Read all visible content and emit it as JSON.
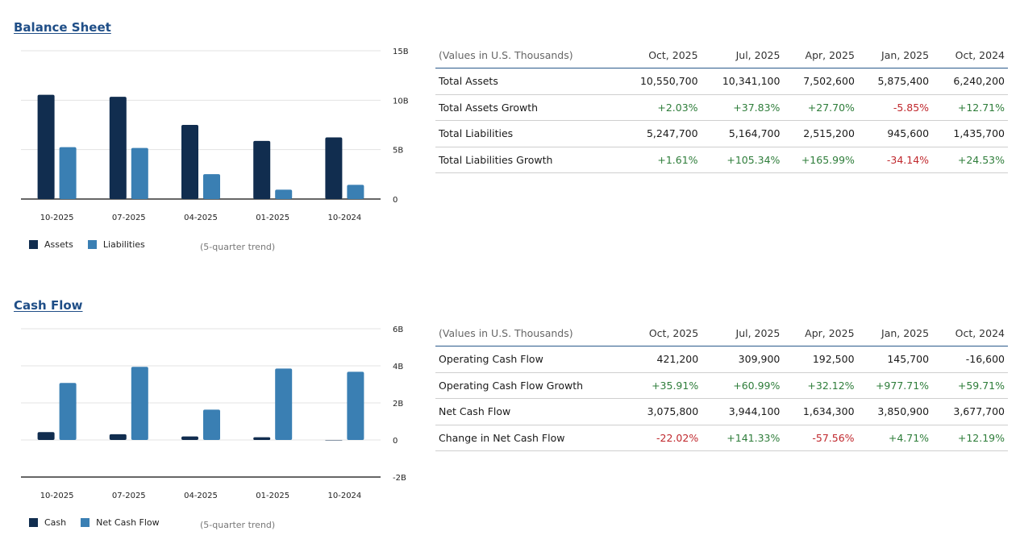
{
  "balance_sheet": {
    "title": "Balance Sheet",
    "legend": [
      {
        "label": "Assets",
        "color": "#112d4f"
      },
      {
        "label": "Liabilities",
        "color": "#3a7fb3"
      }
    ],
    "trend_note": "(5-quarter trend)",
    "table": {
      "header": [
        "(Values in U.S. Thousands)",
        "Oct, 2025",
        "Jul, 2025",
        "Apr, 2025",
        "Jan, 2025",
        "Oct, 2024"
      ],
      "rows": [
        {
          "label": "Total Assets",
          "values": [
            "10,550,700",
            "10,341,100",
            "7,502,600",
            "5,875,400",
            "6,240,200"
          ],
          "kind": "value"
        },
        {
          "label": "Total Assets Growth",
          "values": [
            "+2.03%",
            "+37.83%",
            "+27.70%",
            "-5.85%",
            "+12.71%"
          ],
          "kind": "growth"
        },
        {
          "label": "Total Liabilities",
          "values": [
            "5,247,700",
            "5,164,700",
            "2,515,200",
            "945,600",
            "1,435,700"
          ],
          "kind": "value"
        },
        {
          "label": "Total Liabilities Growth",
          "values": [
            "+1.61%",
            "+105.34%",
            "+165.99%",
            "-34.14%",
            "+24.53%"
          ],
          "kind": "growth"
        }
      ]
    }
  },
  "cash_flow": {
    "title": "Cash Flow",
    "legend": [
      {
        "label": "Cash",
        "color": "#112d4f"
      },
      {
        "label": "Net Cash Flow",
        "color": "#3a7fb3"
      }
    ],
    "trend_note": "(5-quarter trend)",
    "table": {
      "header": [
        "(Values in U.S. Thousands)",
        "Oct, 2025",
        "Jul, 2025",
        "Apr, 2025",
        "Jan, 2025",
        "Oct, 2024"
      ],
      "rows": [
        {
          "label": "Operating Cash Flow",
          "values": [
            "421,200",
            "309,900",
            "192,500",
            "145,700",
            "-16,600"
          ],
          "kind": "value"
        },
        {
          "label": "Operating Cash Flow Growth",
          "values": [
            "+35.91%",
            "+60.99%",
            "+32.12%",
            "+977.71%",
            "+59.71%"
          ],
          "kind": "growth"
        },
        {
          "label": "Net Cash Flow",
          "values": [
            "3,075,800",
            "3,944,100",
            "1,634,300",
            "3,850,900",
            "3,677,700"
          ],
          "kind": "value"
        },
        {
          "label": "Change in Net Cash Flow",
          "values": [
            "-22.02%",
            "+141.33%",
            "-57.56%",
            "+4.71%",
            "+12.19%"
          ],
          "kind": "growth"
        }
      ]
    }
  },
  "colors": {
    "dark_series": "#112d4f",
    "light_series": "#3a7fb3",
    "title": "#1f4e87",
    "positive": "#2e7d3a",
    "negative": "#c0282d"
  },
  "chart_data": [
    {
      "type": "bar",
      "title": "Balance Sheet",
      "categories": [
        "10-2025",
        "07-2025",
        "04-2025",
        "01-2025",
        "10-2024"
      ],
      "series": [
        {
          "name": "Assets",
          "values": [
            10.5507,
            10.3411,
            7.5026,
            5.8754,
            6.2402
          ]
        },
        {
          "name": "Liabilities",
          "values": [
            5.2477,
            5.1647,
            2.5152,
            0.9456,
            1.4357
          ]
        }
      ],
      "unit": "B",
      "ylim": [
        0,
        15
      ],
      "yticks": [
        0,
        5,
        10,
        15
      ],
      "ytick_labels": [
        "0",
        "5B",
        "10B",
        "15B"
      ],
      "y_axis_side": "right",
      "grid": true,
      "legend_position": "bottom-left",
      "note": "(5-quarter trend)"
    },
    {
      "type": "bar",
      "title": "Cash Flow",
      "categories": [
        "10-2025",
        "07-2025",
        "04-2025",
        "01-2025",
        "10-2024"
      ],
      "series": [
        {
          "name": "Cash",
          "values": [
            0.4212,
            0.3099,
            0.1925,
            0.1457,
            -0.0166
          ]
        },
        {
          "name": "Net Cash Flow",
          "values": [
            3.0758,
            3.9441,
            1.6343,
            3.8509,
            3.6777
          ]
        }
      ],
      "unit": "B",
      "ylim": [
        -2,
        6
      ],
      "yticks": [
        -2,
        0,
        2,
        4,
        6
      ],
      "ytick_labels": [
        "-2B",
        "0",
        "2B",
        "4B",
        "6B"
      ],
      "y_axis_side": "right",
      "grid": true,
      "legend_position": "bottom-left",
      "note": "(5-quarter trend)"
    }
  ]
}
